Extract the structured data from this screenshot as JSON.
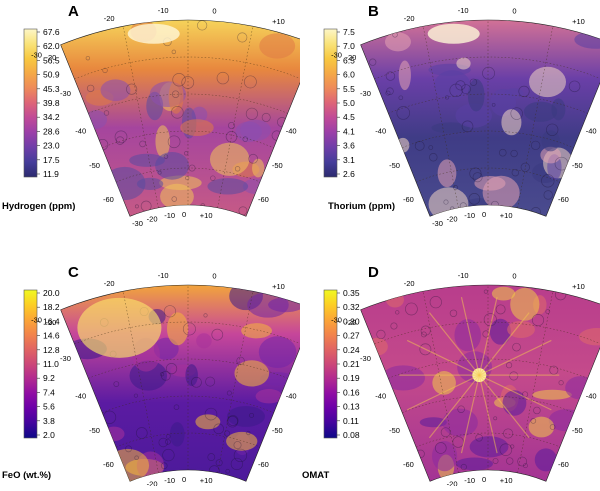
{
  "panels": [
    {
      "id": "A",
      "letter": "A",
      "colorbar_label": "Hydrogen (ppm)",
      "colorbar_ticks": [
        "67.6",
        "62.0",
        "56.5",
        "50.9",
        "45.3",
        "39.8",
        "34.2",
        "28.6",
        "23.0",
        "17.5",
        "11.9"
      ],
      "colormap": "plasma",
      "top_lon_labels": [
        "-20",
        "-10",
        "0",
        "+10"
      ],
      "corner_lon_label": "-30",
      "bottom_lon_labels": [
        "-30",
        "-20",
        "-10",
        "0",
        "+10"
      ],
      "left_lat_labels": [
        "-20",
        "-30",
        "-40",
        "-50",
        "-60"
      ],
      "right_lat_labels": [
        "-20",
        "-30",
        "-40",
        "-50",
        "-60"
      ]
    },
    {
      "id": "B",
      "letter": "B",
      "colorbar_label": "Thorium (ppm)",
      "colorbar_ticks": [
        "7.5",
        "7.0",
        "6.5",
        "6.0",
        "5.5",
        "5.0",
        "4.5",
        "4.1",
        "3.6",
        "3.1",
        "2.6"
      ],
      "colormap": "plasma",
      "top_lon_labels": [
        "-20",
        "-10",
        "0",
        "+10"
      ],
      "corner_lon_label": "-30",
      "bottom_lon_labels": [
        "-30",
        "-20",
        "-10",
        "0",
        "+10"
      ],
      "left_lat_labels": [
        "-20",
        "-30",
        "-40",
        "-50",
        "-60"
      ],
      "right_lat_labels": [
        "-20",
        "-30",
        "-40",
        "-50",
        "-60"
      ]
    },
    {
      "id": "C",
      "letter": "C",
      "colorbar_label": "FeO (wt.%)",
      "colorbar_ticks": [
        "20.0",
        "18.2",
        "16.4",
        "14.6",
        "12.8",
        "11.0",
        "9.2",
        "7.4",
        "5.6",
        "3.8",
        "2.0"
      ],
      "colormap": "plasma",
      "top_lon_labels": [
        "-20",
        "-10",
        "0",
        "+10"
      ],
      "corner_lon_label": "-30",
      "bottom_lon_labels": [
        "-30",
        "-20",
        "-10",
        "0",
        "+10"
      ],
      "left_lat_labels": [
        "-20",
        "-30",
        "-40",
        "-50",
        "-60"
      ],
      "right_lat_labels": [
        "-20",
        "-30",
        "-40",
        "-50",
        "-60"
      ]
    },
    {
      "id": "D",
      "letter": "D",
      "colorbar_label": "OMAT",
      "colorbar_ticks": [
        "0.35",
        "0.32",
        "0.30",
        "0.27",
        "0.24",
        "0.21",
        "0.19",
        "0.16",
        "0.13",
        "0.11",
        "0.08"
      ],
      "colormap": "plasma",
      "top_lon_labels": [
        "-20",
        "-10",
        "0",
        "+10"
      ],
      "corner_lon_label": "-30",
      "bottom_lon_labels": [
        "-30",
        "-20",
        "-10",
        "0",
        "+10"
      ],
      "left_lat_labels": [
        "-20",
        "-30",
        "-40",
        "-50",
        "-60"
      ],
      "right_lat_labels": [
        "-20",
        "-30",
        "-40",
        "-50",
        "-60"
      ]
    }
  ]
}
